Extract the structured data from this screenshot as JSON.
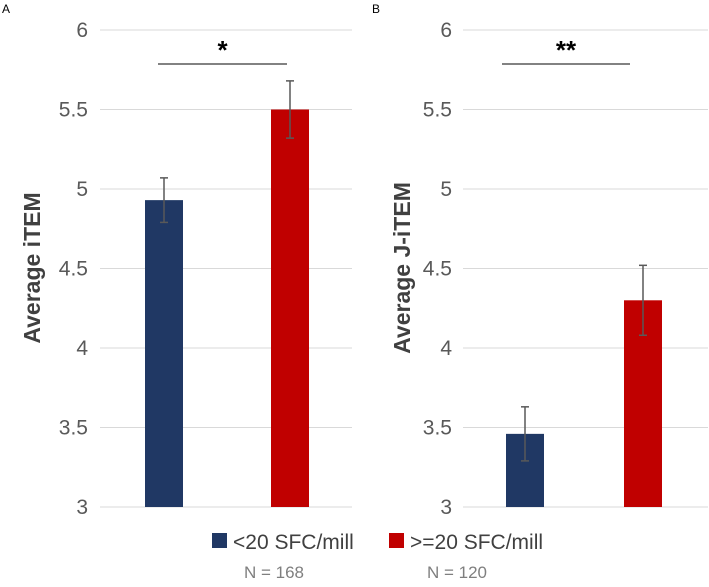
{
  "chart_data": [
    {
      "panel": "A",
      "type": "bar",
      "ylabel": "Average iTEM",
      "xlabel": "",
      "ylim": [
        3,
        6
      ],
      "yticks": [
        "3",
        "3.5",
        "4",
        "4.5",
        "5",
        "5.5",
        "6"
      ],
      "grid": true,
      "categories": [
        "<20 SFC/mill",
        ">=20 SFC/mill"
      ],
      "values": [
        4.93,
        5.5
      ],
      "errors": [
        0.14,
        0.18
      ],
      "significance": "*"
    },
    {
      "panel": "B",
      "type": "bar",
      "ylabel": "Average J-iTEM",
      "xlabel": "",
      "ylim": [
        3,
        6
      ],
      "yticks": [
        "3",
        "3.5",
        "4",
        "4.5",
        "5",
        "5.5",
        "6"
      ],
      "grid": true,
      "categories": [
        "<20 SFC/mill",
        ">=20 SFC/mill"
      ],
      "values": [
        3.46,
        4.3
      ],
      "errors": [
        0.17,
        0.22
      ],
      "significance": "**"
    }
  ],
  "legend": {
    "items": [
      {
        "label": "<20 SFC/mill",
        "n": "N = 168",
        "color": "#203864"
      },
      {
        "label": ">=20 SFC/mill",
        "n": "N = 120",
        "color": "#c00000"
      }
    ]
  },
  "colors": {
    "bar_low": "#203864",
    "bar_high": "#c00000",
    "grid": "#d9d9d9",
    "error": "#595959",
    "bracket": "#595959"
  }
}
